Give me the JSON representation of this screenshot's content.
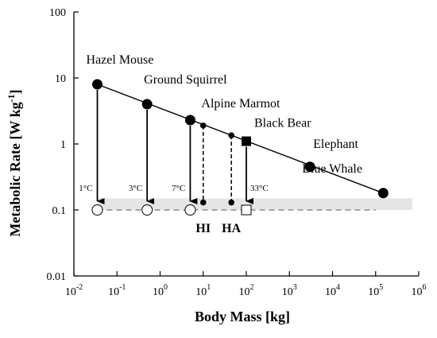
{
  "chart_data": {
    "type": "scatter",
    "x_scale": "log",
    "y_scale": "log",
    "xlim": [
      0.01,
      1000000
    ],
    "ylim": [
      0.01,
      100
    ],
    "xlabel": "Body Mass [kg]",
    "ylabel_main": "Metabolic Rate [W kg",
    "ylabel_sup": "-1",
    "ylabel_end": "]",
    "x_ticks": [
      {
        "value": 0.01,
        "base": "10",
        "exp": "-2"
      },
      {
        "value": 0.1,
        "base": "10",
        "exp": "-1"
      },
      {
        "value": 1,
        "base": "10",
        "exp": "0"
      },
      {
        "value": 10,
        "base": "10",
        "exp": "1"
      },
      {
        "value": 100,
        "base": "10",
        "exp": "2"
      },
      {
        "value": 1000,
        "base": "10",
        "exp": "3"
      },
      {
        "value": 10000,
        "base": "10",
        "exp": "4"
      },
      {
        "value": 100000,
        "base": "10",
        "exp": "5"
      },
      {
        "value": 1000000,
        "base": "10",
        "exp": "6"
      }
    ],
    "y_ticks": [
      {
        "value": 100,
        "label": "100"
      },
      {
        "value": 10,
        "label": "10"
      },
      {
        "value": 1,
        "label": "1"
      },
      {
        "value": 0.1,
        "label": "0.1"
      },
      {
        "value": 0.01,
        "label": "0.01"
      }
    ],
    "band": {
      "y_low": 0.1,
      "y_high": 0.15,
      "color": "#e6e6e6"
    },
    "basal_line": {
      "y": 0.1,
      "x_from": 0.035,
      "x_to": 100000
    },
    "regression_line": {
      "x_from": 0.035,
      "x_to": 150000,
      "y_from": 8,
      "y_to": 0.18
    },
    "animals": [
      {
        "name": "Hazel Mouse",
        "x": 0.035,
        "y": 8,
        "marker": "filled-circle",
        "hibernating_y": 0.1,
        "hibernating_marker": "open-circle",
        "temperature": "1°C",
        "arrow": "solid"
      },
      {
        "name": "Ground Squirrel",
        "x": 0.5,
        "y": 4,
        "marker": "filled-circle",
        "hibernating_y": 0.1,
        "hibernating_marker": "open-circle",
        "temperature": "3°C",
        "arrow": "solid"
      },
      {
        "name": "Alpine Marmot",
        "x": 5,
        "y": 2.3,
        "marker": "filled-circle",
        "hibernating_y": 0.1,
        "hibernating_marker": "open-circle",
        "temperature": "7°C",
        "arrow": "solid"
      },
      {
        "name": "Black Bear",
        "x": 100,
        "y": 1.1,
        "marker": "filled-square",
        "hibernating_y": 0.1,
        "hibernating_marker": "open-square",
        "temperature": "33°C",
        "arrow": "solid"
      },
      {
        "name": "Elephant",
        "x": 3000,
        "y": 0.45,
        "marker": "filled-circle"
      },
      {
        "name": "Blue Whale",
        "x": 150000,
        "y": 0.18,
        "marker": "filled-circle"
      }
    ],
    "dashed_pairs": [
      {
        "label": "HI",
        "x": 10,
        "y_top": 1.9,
        "y_bottom": 0.13
      },
      {
        "label": "HA",
        "x": 45,
        "y_top": 1.35,
        "y_bottom": 0.13
      }
    ]
  }
}
